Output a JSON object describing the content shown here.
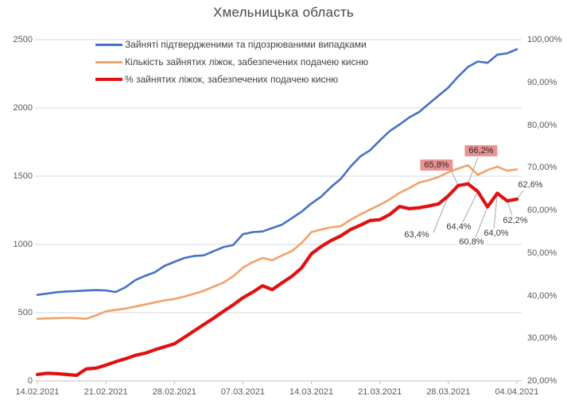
{
  "title": "Хмельницька область",
  "axes": {
    "left_ticks": [
      "0",
      "500",
      "1000",
      "1500",
      "2000",
      "2500"
    ],
    "left_tick_values": [
      0,
      500,
      1000,
      1500,
      2000,
      2500
    ],
    "right_ticks": [
      "20,00%",
      "30,00%",
      "40,00%",
      "50,00%",
      "60,00%",
      "70,00%",
      "80,00%",
      "90,00%",
      "100,00%"
    ],
    "right_tick_values": [
      20,
      30,
      40,
      50,
      60,
      70,
      80,
      90,
      100
    ],
    "x_ticks": [
      "14.02.2021",
      "21.02.2021",
      "28.02.2021",
      "07.03.2021",
      "14.03.2021",
      "21.03.2021",
      "28.03.2021",
      "04.04.2021"
    ]
  },
  "chart_data": {
    "type": "line",
    "title": "Хмельницька область",
    "grid": "horizontal",
    "legend_position": "top-left",
    "y_left_range": [
      0,
      2500
    ],
    "y_right_range": [
      20,
      100
    ],
    "x": [
      "14.02",
      "15.02",
      "16.02",
      "17.02",
      "18.02",
      "19.02",
      "20.02",
      "21.02",
      "22.02",
      "23.02",
      "24.02",
      "25.02",
      "26.02",
      "27.02",
      "28.02",
      "01.03",
      "02.03",
      "03.03",
      "04.03",
      "05.03",
      "06.03",
      "07.03",
      "08.03",
      "09.03",
      "10.03",
      "11.03",
      "12.03",
      "13.03",
      "14.03",
      "15.03",
      "16.03",
      "17.03",
      "18.03",
      "19.03",
      "20.03",
      "21.03",
      "22.03",
      "23.03",
      "24.03",
      "25.03",
      "26.03",
      "27.03",
      "28.03",
      "29.03",
      "30.03",
      "31.03",
      "01.04",
      "02.04",
      "03.04",
      "04.04"
    ],
    "x_tick_labels": [
      "14.02.2021",
      "21.02.2021",
      "28.02.2021",
      "07.03.2021",
      "14.03.2021",
      "21.03.2021",
      "28.03.2021",
      "04.04.2021"
    ],
    "series": [
      {
        "name": "Зайняті підтвердженими та підозрюваними випадками",
        "color": "#4472C4",
        "axis": "left",
        "values": [
          630,
          640,
          650,
          655,
          658,
          662,
          665,
          663,
          651,
          686,
          738,
          770,
          796,
          843,
          872,
          900,
          915,
          920,
          950,
          980,
          995,
          1075,
          1090,
          1095,
          1120,
          1145,
          1192,
          1240,
          1300,
          1350,
          1420,
          1480,
          1570,
          1645,
          1690,
          1762,
          1830,
          1878,
          1930,
          1970,
          2030,
          2090,
          2150,
          2230,
          2300,
          2340,
          2330,
          2390,
          2400,
          2430
        ]
      },
      {
        "name": "Кількість зайнятих ліжок, забезпечених подачею кисню",
        "color": "#F2A269",
        "axis": "left",
        "values": [
          455,
          458,
          460,
          462,
          460,
          455,
          480,
          510,
          520,
          530,
          545,
          560,
          575,
          590,
          600,
          618,
          638,
          660,
          690,
          720,
          765,
          830,
          870,
          901,
          884,
          920,
          950,
          1010,
          1090,
          1110,
          1125,
          1134,
          1180,
          1220,
          1255,
          1290,
          1330,
          1378,
          1413,
          1453,
          1471,
          1494,
          1529,
          1555,
          1580,
          1510,
          1545,
          1570,
          1540,
          1550
        ]
      },
      {
        "name": "% зайнятих ліжок, забезпечених подачею кисню",
        "color": "#E01112",
        "axis": "right",
        "values": [
          21.5,
          21.8,
          21.7,
          21.5,
          21.3,
          22.8,
          23.0,
          23.7,
          24.5,
          25.2,
          26.0,
          26.5,
          27.3,
          28.0,
          28.7,
          30.2,
          31.7,
          33.2,
          34.7,
          36.3,
          37.8,
          39.5,
          40.8,
          42.3,
          41.4,
          43.0,
          44.5,
          46.5,
          49.8,
          51.5,
          52.9,
          54.0,
          55.5,
          56.5,
          57.6,
          57.8,
          59.0,
          60.9,
          60.4,
          60.6,
          61.0,
          61.5,
          63.4,
          65.8,
          66.2,
          64.4,
          60.8,
          64.0,
          62.2,
          62.6
        ]
      }
    ],
    "annotations": [
      {
        "label": "63,4%",
        "date": "28.03",
        "index": 42,
        "value": 63.4,
        "highlight": false
      },
      {
        "label": "65,8%",
        "date": "29.03",
        "index": 43,
        "value": 65.8,
        "highlight": true
      },
      {
        "label": "66,2%",
        "date": "30.03",
        "index": 44,
        "value": 66.2,
        "highlight": true
      },
      {
        "label": "64,4%",
        "date": "31.03",
        "index": 45,
        "value": 64.4,
        "highlight": false
      },
      {
        "label": "60,8%",
        "date": "01.04",
        "index": 46,
        "value": 60.8,
        "highlight": false
      },
      {
        "label": "64,0%",
        "date": "02.04",
        "index": 47,
        "value": 64.0,
        "highlight": false
      },
      {
        "label": "62,2%",
        "date": "03.04",
        "index": 48,
        "value": 62.2,
        "highlight": false
      },
      {
        "label": "62,6%",
        "date": "04.04",
        "index": 49,
        "value": 62.6,
        "highlight": false
      }
    ],
    "annotation_highlight_color": "#EA9394"
  }
}
